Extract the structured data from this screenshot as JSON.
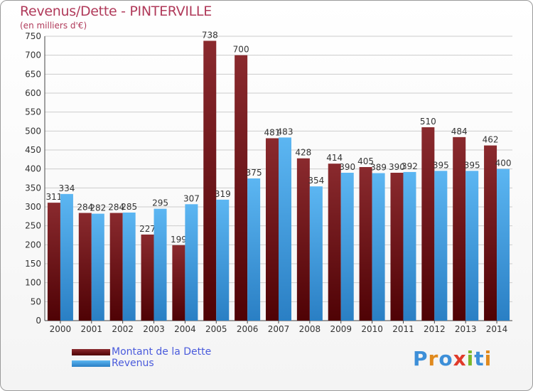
{
  "header": {
    "title": "Revenus/Dette - PINTERVILLE",
    "subtitle": "(en milliers d'€)"
  },
  "colors": {
    "dette": "#7a1418",
    "revenus": "#3d9ee6",
    "grid": "#cccccc",
    "title": "#b03a5a"
  },
  "legend": {
    "dette_label": "Montant de la Dette",
    "revenus_label": "Revenus"
  },
  "logo": {
    "text": "Proxiti"
  },
  "chart_data": {
    "type": "bar",
    "title": "Revenus/Dette - PINTERVILLE",
    "ylabel": "(en milliers d'€)",
    "xlabel": "",
    "ylim": [
      0,
      750
    ],
    "yticks": [
      0,
      50,
      100,
      150,
      200,
      250,
      300,
      350,
      400,
      450,
      500,
      550,
      600,
      650,
      700,
      750
    ],
    "grid": true,
    "legend_position": "bottom-left",
    "categories": [
      "2000",
      "2001",
      "2002",
      "2003",
      "2004",
      "2005",
      "2006",
      "2007",
      "2008",
      "2009",
      "2010",
      "2011",
      "2012",
      "2013",
      "2014"
    ],
    "series": [
      {
        "name": "Montant de la Dette",
        "values": [
          311,
          284,
          284,
          227,
          199,
          738,
          700,
          481,
          428,
          414,
          405,
          390,
          510,
          484,
          462
        ]
      },
      {
        "name": "Revenus",
        "values": [
          334,
          282,
          285,
          295,
          307,
          319,
          375,
          483,
          354,
          390,
          389,
          392,
          395,
          395,
          400
        ]
      }
    ]
  }
}
